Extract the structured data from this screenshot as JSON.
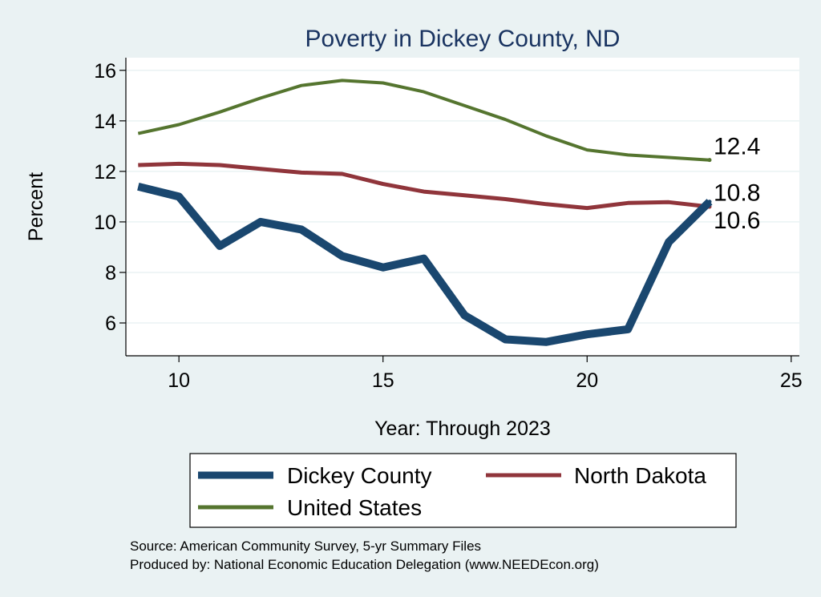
{
  "chart_data": {
    "type": "line",
    "title": "Poverty in Dickey County, ND",
    "xlabel": "Year: Through 2023",
    "ylabel": "Percent",
    "xlim": [
      8.7,
      25.2
    ],
    "ylim": [
      4.7,
      16.5
    ],
    "xticks": [
      10,
      15,
      20,
      25
    ],
    "yticks": [
      6,
      8,
      10,
      12,
      14,
      16
    ],
    "grid": true,
    "legend_position": "bottom",
    "x": [
      9,
      10,
      11,
      12,
      13,
      14,
      15,
      16,
      17,
      18,
      19,
      20,
      21,
      22,
      23
    ],
    "series": [
      {
        "name": "Dickey County",
        "color": "#1a476f",
        "values": [
          11.4,
          11.0,
          9.05,
          10.0,
          9.7,
          8.65,
          8.2,
          8.55,
          6.3,
          5.35,
          5.25,
          5.55,
          5.75,
          9.2,
          10.8
        ],
        "end_label": "10.8"
      },
      {
        "name": "North Dakota",
        "color": "#90353b",
        "values": [
          12.25,
          12.3,
          12.25,
          12.1,
          11.95,
          11.9,
          11.5,
          11.2,
          11.05,
          10.9,
          10.7,
          10.55,
          10.75,
          10.78,
          10.6
        ],
        "end_label": "10.6"
      },
      {
        "name": "United States",
        "color": "#55752f",
        "values": [
          13.5,
          13.85,
          14.35,
          14.9,
          15.4,
          15.6,
          15.5,
          15.15,
          14.6,
          14.05,
          13.4,
          12.85,
          12.65,
          12.55,
          12.45
        ],
        "end_label": "12.4"
      }
    ]
  },
  "notes": {
    "source": "Source: American Community Survey, 5-yr Summary Files",
    "produced_by": "Produced by: National Economic Education Delegation (www.NEEDEcon.org)"
  }
}
